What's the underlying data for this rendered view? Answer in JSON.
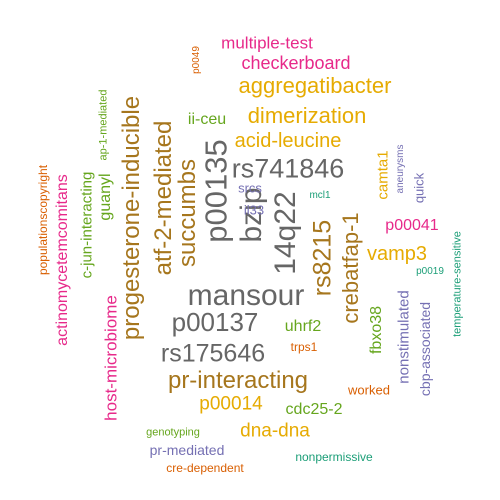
{
  "palette": {
    "teal": "#1b9e77",
    "orange": "#d95f02",
    "purple": "#7570b3",
    "magenta": "#e7298a",
    "green": "#66a61e",
    "gold": "#e6ab02",
    "brown": "#a6761d",
    "gray": "#666666"
  },
  "words": [
    {
      "text": "mansour",
      "color": "#666666"
    },
    {
      "text": "14q22",
      "color": "#666666"
    },
    {
      "text": "p00135",
      "color": "#666666"
    },
    {
      "text": "bzip",
      "color": "#666666"
    },
    {
      "text": "rs741846",
      "color": "#666666"
    },
    {
      "text": "p00137",
      "color": "#666666"
    },
    {
      "text": "rs175646",
      "color": "#666666"
    },
    {
      "text": "succumbs",
      "color": "#a6761d"
    },
    {
      "text": "atf-2-mediated",
      "color": "#a6761d"
    },
    {
      "text": "progesterone-inducible",
      "color": "#a6761d"
    },
    {
      "text": "pr-interacting",
      "color": "#a6761d"
    },
    {
      "text": "rs8215",
      "color": "#a6761d"
    },
    {
      "text": "crebatfap-1",
      "color": "#a6761d"
    },
    {
      "text": "aggregatibacter",
      "color": "#e6ab02"
    },
    {
      "text": "dimerization",
      "color": "#e6ab02"
    },
    {
      "text": "acid-leucine",
      "color": "#e6ab02"
    },
    {
      "text": "vamp3",
      "color": "#e6ab02"
    },
    {
      "text": "p00014",
      "color": "#e6ab02"
    },
    {
      "text": "dna-dna",
      "color": "#e6ab02"
    },
    {
      "text": "camta1",
      "color": "#e6ab02"
    },
    {
      "text": "checkerboard",
      "color": "#e7298a"
    },
    {
      "text": "multiple-test",
      "color": "#e7298a"
    },
    {
      "text": "host-microbiome",
      "color": "#e7298a"
    },
    {
      "text": "actinomycetemcomitans",
      "color": "#e7298a"
    },
    {
      "text": "p00041",
      "color": "#e7298a"
    },
    {
      "text": "guanyl",
      "color": "#66a61e"
    },
    {
      "text": "c-jun-interacting",
      "color": "#66a61e"
    },
    {
      "text": "ii-ceu",
      "color": "#66a61e"
    },
    {
      "text": "uhrf2",
      "color": "#66a61e"
    },
    {
      "text": "fbxo38",
      "color": "#66a61e"
    },
    {
      "text": "cdc25-2",
      "color": "#66a61e"
    },
    {
      "text": "ap-1-mediated",
      "color": "#66a61e"
    },
    {
      "text": "genotyping",
      "color": "#66a61e"
    },
    {
      "text": "srcs",
      "color": "#7570b3"
    },
    {
      "text": "il33",
      "color": "#7570b3"
    },
    {
      "text": "quick",
      "color": "#7570b3"
    },
    {
      "text": "aneurysms",
      "color": "#7570b3"
    },
    {
      "text": "nonstimulated",
      "color": "#7570b3"
    },
    {
      "text": "cbp-associated",
      "color": "#7570b3"
    },
    {
      "text": "pr-mediated",
      "color": "#7570b3"
    },
    {
      "text": "populationscopyright",
      "color": "#d95f02"
    },
    {
      "text": "p0049",
      "color": "#d95f02"
    },
    {
      "text": "trps1",
      "color": "#d95f02"
    },
    {
      "text": "worked",
      "color": "#d95f02"
    },
    {
      "text": "cre-dependent",
      "color": "#d95f02"
    },
    {
      "text": "mcl1",
      "color": "#1b9e77"
    },
    {
      "text": "p0019",
      "color": "#1b9e77"
    },
    {
      "text": "temperature-sensitive",
      "color": "#1b9e77"
    },
    {
      "text": "nonpermissive",
      "color": "#1b9e77"
    }
  ]
}
